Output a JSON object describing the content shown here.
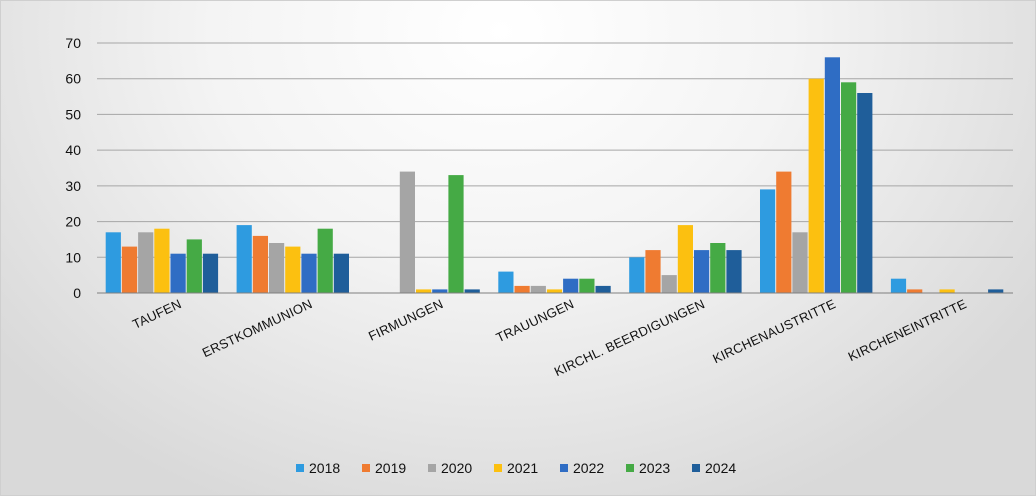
{
  "chart_data": {
    "type": "bar",
    "title": "",
    "xlabel": "",
    "ylabel": "",
    "ylim": [
      0,
      70
    ],
    "yticks": [
      0,
      10,
      20,
      30,
      40,
      50,
      60,
      70
    ],
    "grid": true,
    "legend_position": "bottom",
    "categories": [
      "TAUFEN",
      "ERSTKOMMUNION",
      "FIRMUNGEN",
      "TRAUUNGEN",
      "KIRCHL. BEERDIGUNGEN",
      "KIRCHENAUSTRITTE",
      "KIRCHENEINTRITTE"
    ],
    "series": [
      {
        "name": "2018",
        "color": "#2e9be0",
        "values": [
          17,
          19,
          0,
          6,
          10,
          29,
          4
        ]
      },
      {
        "name": "2019",
        "color": "#ef7b31",
        "values": [
          13,
          16,
          0,
          2,
          12,
          34,
          1
        ]
      },
      {
        "name": "2020",
        "color": "#a5a5a5",
        "values": [
          17,
          14,
          34,
          2,
          5,
          17,
          0
        ]
      },
      {
        "name": "2021",
        "color": "#fcc010",
        "values": [
          18,
          13,
          1,
          1,
          19,
          60,
          1
        ]
      },
      {
        "name": "2022",
        "color": "#2f6dc4",
        "values": [
          11,
          11,
          1,
          4,
          12,
          66,
          0
        ]
      },
      {
        "name": "2023",
        "color": "#45aa45",
        "values": [
          15,
          18,
          33,
          4,
          14,
          59,
          0
        ]
      },
      {
        "name": "2024",
        "color": "#1f5e9a",
        "values": [
          11,
          11,
          1,
          2,
          12,
          56,
          1
        ]
      }
    ]
  }
}
